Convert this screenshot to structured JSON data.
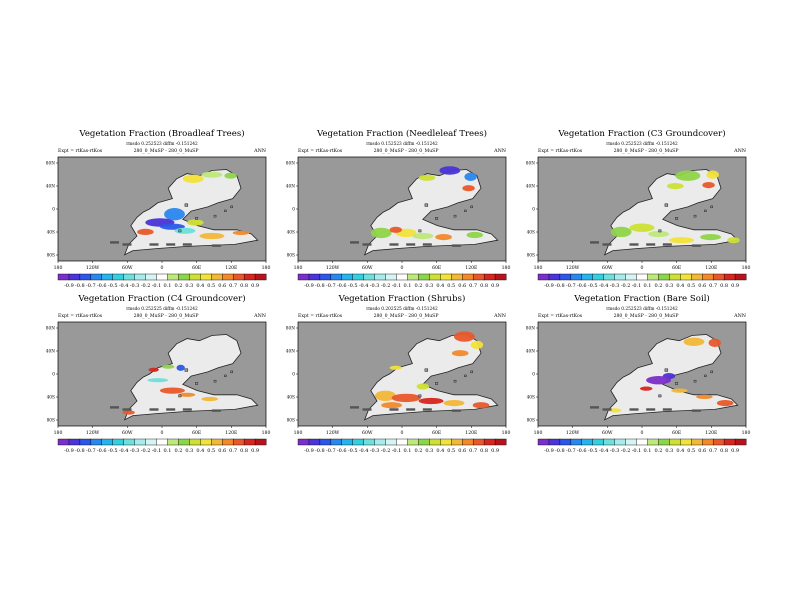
{
  "chart_data": [
    {
      "type": "heatmap",
      "title": "Vegetation Fraction (Broadleaf Trees)",
      "subtitle": "rmsdo 0.252523 diffm -0.151242",
      "expt_label": "Expt = rtKas-rtKos",
      "run_label": "280_0_MuSP - 280_0_MuSP",
      "season": "ANN",
      "x_ticks": [
        "180",
        "120W",
        "60W",
        "0",
        "60E",
        "120E",
        "180"
      ],
      "y_ticks": [
        "80N",
        "40N",
        "0",
        "40S",
        "80S"
      ],
      "xlim": [
        -180,
        180
      ],
      "ylim": [
        -90,
        90
      ]
    },
    {
      "type": "heatmap",
      "title": "Vegetation Fraction (Needleleaf Trees)",
      "subtitle": "rmsdo 0.152523 diffm -0.151242",
      "expt_label": "Expt = rtKas-rtKos",
      "run_label": "280_0_MuSP - 280_0_MuSP",
      "season": "ANN",
      "x_ticks": [
        "180",
        "120W",
        "60W",
        "0",
        "60E",
        "120E",
        "180"
      ],
      "y_ticks": [
        "80N",
        "40N",
        "0",
        "40S",
        "80S"
      ],
      "xlim": [
        -180,
        180
      ],
      "ylim": [
        -90,
        90
      ]
    },
    {
      "type": "heatmap",
      "title": "Vegetation Fraction (C3 Groundcover)",
      "subtitle": "rmsdo 0.252523 diffm -0.151242",
      "expt_label": "Expt = rtKas-rtKos",
      "run_label": "280_0_MuSP - 280_0_MuSP",
      "season": "ANN",
      "x_ticks": [
        "180",
        "120W",
        "60W",
        "0",
        "60E",
        "120E",
        "180"
      ],
      "y_ticks": [
        "80N",
        "40N",
        "0",
        "40S",
        "80S"
      ],
      "xlim": [
        -180,
        180
      ],
      "ylim": [
        -90,
        90
      ]
    },
    {
      "type": "heatmap",
      "title": "Vegetation Fraction (C4 Groundcover)",
      "subtitle": "rmsdo 0.252525 diffm -0.151242",
      "expt_label": "Expt = rtKas-rtKos",
      "run_label": "280_0_MuSP - 280_0_MuSP",
      "season": "ANN",
      "x_ticks": [
        "180",
        "120W",
        "60W",
        "0",
        "60E",
        "120E",
        "180"
      ],
      "y_ticks": [
        "80N",
        "40N",
        "0",
        "40S",
        "80S"
      ],
      "xlim": [
        -180,
        180
      ],
      "ylim": [
        -90,
        90
      ]
    },
    {
      "type": "heatmap",
      "title": "Vegetation Fraction (Shrubs)",
      "subtitle": "rmsdo 0.202525 diffm -0.151242",
      "expt_label": "Expt = rtKas-rtKos",
      "run_label": "280_0_MuSP - 280_0_MuSP",
      "season": "ANN",
      "x_ticks": [
        "180",
        "120W",
        "60W",
        "0",
        "60E",
        "120E",
        "180"
      ],
      "y_ticks": [
        "80N",
        "40N",
        "0",
        "40S",
        "80S"
      ],
      "xlim": [
        -180,
        180
      ],
      "ylim": [
        -90,
        90
      ]
    },
    {
      "type": "heatmap",
      "title": "Vegetation Fraction (Bare Soil)",
      "subtitle": "rmsdo 0.252523 diffm -0.151242",
      "expt_label": "Expt = rtKas-rtKos",
      "run_label": "280_0_MuSP - 280_0_MuSP",
      "season": "ANN",
      "x_ticks": [
        "180",
        "120W",
        "60W",
        "0",
        "60E",
        "120E",
        "180"
      ],
      "y_ticks": [
        "80N",
        "40N",
        "0",
        "40S",
        "80S"
      ],
      "xlim": [
        -180,
        180
      ],
      "ylim": [
        -90,
        90
      ]
    }
  ],
  "colorbar": {
    "labels": [
      "-0.9",
      "-0.8",
      "-0.7",
      "-0.6",
      "-0.5",
      "-0.4",
      "-0.3",
      "-0.2",
      "-0.1",
      "0.1",
      "0.2",
      "0.3",
      "0.4",
      "0.5",
      "0.6",
      "0.7",
      "0.8",
      "0.9"
    ],
    "colors": [
      "#7b2fc9",
      "#4b34d8",
      "#2b58e8",
      "#2a88ee",
      "#27b3ee",
      "#35cfe0",
      "#6be0dc",
      "#a6ecec",
      "#d5f5f5",
      "#ffffff",
      "#bfe87a",
      "#8fd54a",
      "#cde034",
      "#f2e33a",
      "#f3b739",
      "#f08a2c",
      "#e8582a",
      "#d6261f",
      "#b5141a"
    ]
  },
  "palette": {
    "ocean": "#999999",
    "land": "#ebebeb",
    "coast": "#222222"
  }
}
